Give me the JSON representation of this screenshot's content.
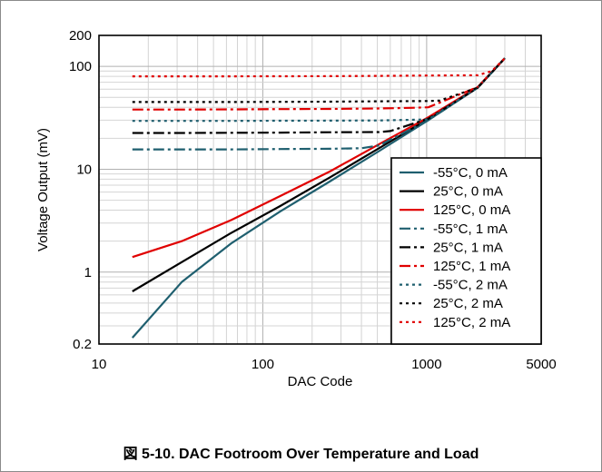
{
  "caption": "図 5-10. DAC Footroom Over Temperature and Load",
  "chart_data": {
    "type": "line",
    "title": "",
    "xlabel": "DAC Code",
    "ylabel": "Voltage Output (mV)",
    "xscale": "log",
    "yscale": "log",
    "xlim": [
      10,
      5000
    ],
    "ylim": [
      0.2,
      200
    ],
    "xticks": [
      10,
      100,
      1000,
      5000
    ],
    "xtick_labels": [
      "10",
      "100",
      "1000",
      "5000"
    ],
    "yticks": [
      0.2,
      1,
      10,
      100,
      200
    ],
    "ytick_labels": [
      "0.2",
      "1",
      "10",
      "100",
      "200"
    ],
    "grid": true,
    "legend_position": "lower-right",
    "series": [
      {
        "name": "-55°C, 0 mA",
        "color": "#1f5f6f",
        "dash": "solid",
        "x": [
          16,
          32,
          64,
          128,
          256,
          512,
          1024,
          2048,
          3000
        ],
        "y": [
          0.23,
          0.8,
          1.9,
          3.9,
          7.6,
          15,
          30,
          62,
          120
        ]
      },
      {
        "name": "25°C, 0 mA",
        "color": "#000000",
        "dash": "solid",
        "x": [
          16,
          32,
          64,
          128,
          256,
          512,
          1024,
          2048,
          3000
        ],
        "y": [
          0.65,
          1.25,
          2.4,
          4.4,
          8.3,
          16,
          31,
          62,
          120
        ]
      },
      {
        "name": "125°C, 0 mA",
        "color": "#e00000",
        "dash": "solid",
        "x": [
          16,
          32,
          64,
          128,
          256,
          512,
          1024,
          2048,
          3000
        ],
        "y": [
          1.4,
          2.0,
          3.2,
          5.5,
          9.5,
          17.5,
          32,
          63,
          120
        ]
      },
      {
        "name": "-55°C, 1 mA",
        "color": "#1f5f6f",
        "dash": "dashdot",
        "x": [
          16,
          32,
          64,
          128,
          256,
          400,
          512,
          1024,
          2048,
          3000
        ],
        "y": [
          15.6,
          15.6,
          15.6,
          15.7,
          15.8,
          16,
          17,
          30,
          62,
          120
        ]
      },
      {
        "name": "25°C, 1 mA",
        "color": "#000000",
        "dash": "dashdot",
        "x": [
          16,
          32,
          64,
          128,
          256,
          512,
          600,
          1024,
          2048,
          3000
        ],
        "y": [
          22.5,
          22.5,
          22.6,
          22.7,
          22.9,
          23,
          23.5,
          31,
          62,
          120
        ]
      },
      {
        "name": "125°C, 1 mA",
        "color": "#e00000",
        "dash": "dashdot",
        "x": [
          16,
          32,
          64,
          128,
          256,
          512,
          800,
          1024,
          2048,
          3000
        ],
        "y": [
          38,
          38,
          38.2,
          38.4,
          38.6,
          39,
          39.5,
          40,
          63,
          120
        ]
      },
      {
        "name": "-55°C, 2 mA",
        "color": "#1f5f6f",
        "dash": "dot",
        "x": [
          16,
          32,
          64,
          128,
          256,
          512,
          1024,
          2048,
          3000
        ],
        "y": [
          29.5,
          29.5,
          29.5,
          29.6,
          29.7,
          29.8,
          30.5,
          62,
          120
        ]
      },
      {
        "name": "25°C, 2 mA",
        "color": "#000000",
        "dash": "dot",
        "x": [
          16,
          32,
          64,
          128,
          256,
          512,
          1024,
          1200,
          2048,
          3000
        ],
        "y": [
          45,
          45,
          45,
          45.2,
          45.4,
          45.8,
          46,
          46.5,
          62,
          120
        ]
      },
      {
        "name": "125°C, 2 mA",
        "color": "#e00000",
        "dash": "dot",
        "x": [
          16,
          32,
          64,
          128,
          256,
          512,
          1024,
          2048,
          2500,
          3000
        ],
        "y": [
          80,
          80,
          80,
          80.2,
          80.4,
          80.8,
          81.5,
          82,
          90,
          120
        ]
      }
    ]
  }
}
